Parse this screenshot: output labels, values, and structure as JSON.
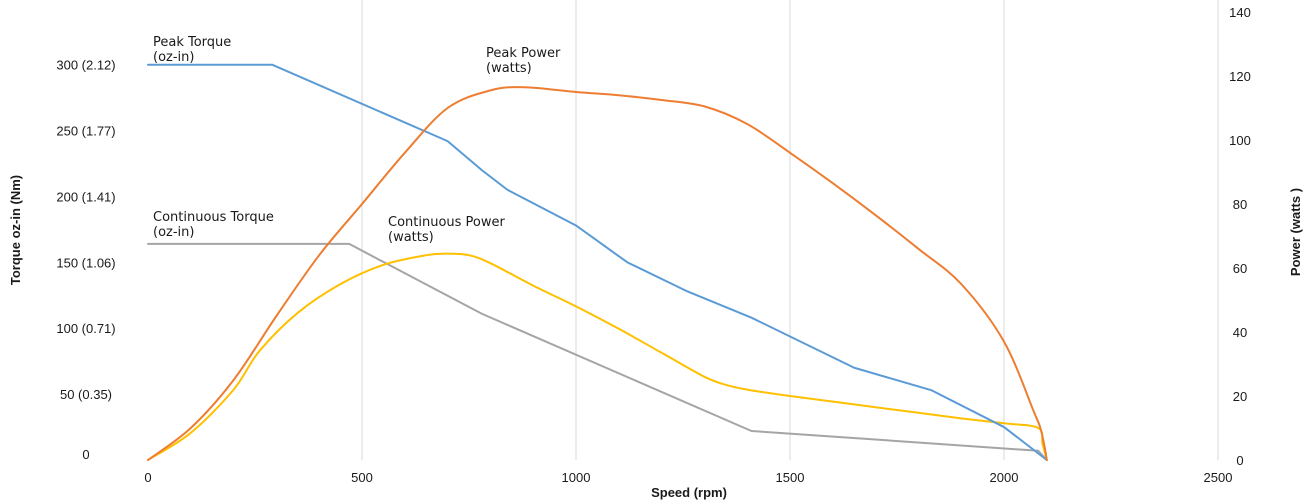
{
  "chart_data": {
    "type": "line",
    "xlabel": "Speed (rpm)",
    "ylabel_left": "Torque oz-in (Nm)",
    "ylabel_right": "Power (watts )",
    "xlim": [
      0,
      2500
    ],
    "ylim_left": [
      0,
      340
    ],
    "ylim_right": [
      0,
      140
    ],
    "x_ticks": [
      0,
      500,
      1000,
      1500,
      2000,
      2500
    ],
    "x_tick_labels": [
      "0",
      "500",
      "1000",
      "1500",
      "2000",
      "2500"
    ],
    "y_left_ticks": [
      0,
      50,
      100,
      150,
      200,
      250,
      300
    ],
    "y_left_tick_labels": [
      "0",
      "50 (0.35)",
      "100 (0.71)",
      "150 (1.06)",
      "200 (1.41)",
      "250 (1.77)",
      "300 (2.12)"
    ],
    "y_right_ticks": [
      0,
      20,
      40,
      60,
      80,
      100,
      120,
      140
    ],
    "y_right_tick_labels": [
      "0",
      "20",
      "40",
      "60",
      "80",
      "100",
      "120",
      "140"
    ],
    "grid": {
      "vertical": true,
      "horizontal": false
    },
    "legend": "none",
    "series": [
      {
        "name_lines": [
          "Peak Torque",
          "(oz-in)"
        ],
        "axis": "left",
        "color": "#5b9bd5",
        "x": [
          0,
          290,
          700,
          780,
          840,
          1000,
          1120,
          1260,
          1410,
          1650,
          1830,
          2000,
          2100
        ],
        "y": [
          300,
          300,
          242,
          220,
          205,
          178,
          150,
          128,
          108,
          70,
          53,
          25,
          0
        ]
      },
      {
        "name_lines": [
          "Peak Power",
          "(watts)"
        ],
        "axis": "right",
        "color": "#ed7d31",
        "x": [
          0,
          100,
          200,
          300,
          400,
          500,
          600,
          700,
          800,
          880,
          1000,
          1100,
          1200,
          1300,
          1400,
          1500,
          1600,
          1700,
          1800,
          1900,
          2000,
          2070,
          2085,
          2095,
          2100
        ],
        "y": [
          0,
          10,
          25,
          45,
          64,
          80,
          96,
          110,
          115.5,
          116.5,
          115,
          114,
          112.5,
          110.5,
          105,
          96,
          86.5,
          76.5,
          66,
          55,
          37,
          15,
          10,
          4,
          0
        ]
      },
      {
        "name_lines": [
          "Continuous Torque",
          "(oz-in)"
        ],
        "axis": "left",
        "color": "#a5a5a5",
        "x": [
          0,
          470,
          780,
          1410,
          2080,
          2100
        ],
        "y": [
          164,
          164,
          111,
          22,
          7,
          0
        ]
      },
      {
        "name_lines": [
          "Continuous Power",
          "(watts)"
        ],
        "axis": "right",
        "color": "#ffc000",
        "x": [
          0,
          100,
          200,
          260,
          350,
          450,
          550,
          650,
          700,
          750,
          800,
          900,
          1000,
          1100,
          1200,
          1300,
          1350,
          1400,
          1500,
          1700,
          1900,
          2000,
          2080,
          2090,
          2100
        ],
        "y": [
          0,
          8.5,
          22,
          34,
          46,
          55,
          61,
          64,
          64.5,
          64,
          61.5,
          54.5,
          48,
          41,
          33.5,
          26,
          23.5,
          22,
          20,
          16.5,
          13,
          11.5,
          10,
          5,
          0
        ]
      }
    ]
  }
}
